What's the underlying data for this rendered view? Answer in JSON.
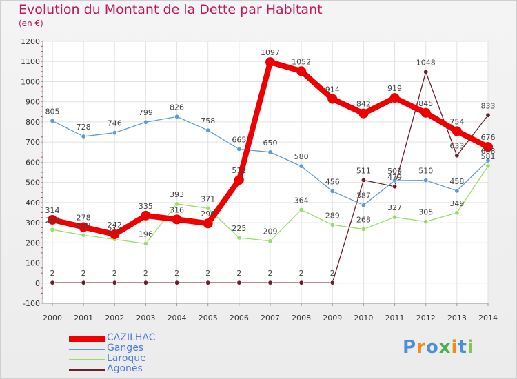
{
  "title": "Evolution du Montant de la Dette par Habitant",
  "subtitle": "(en €)",
  "logo": {
    "text": "Proxiti",
    "colors": [
      "#4a90d9",
      "#f08a1c",
      "#4a90d9",
      "#4caf50",
      "#f08a1c",
      "#4a90d9",
      "#8bc34a"
    ]
  },
  "chart_data": {
    "type": "line",
    "categories": [
      "2000",
      "2001",
      "2002",
      "2003",
      "2004",
      "2005",
      "2006",
      "2007",
      "2008",
      "2009",
      "2010",
      "2011",
      "2012",
      "2013",
      "2014"
    ],
    "ylim": [
      -100,
      1200
    ],
    "yticks": [
      -100,
      0,
      100,
      200,
      300,
      400,
      500,
      600,
      700,
      800,
      900,
      1000,
      1100,
      1200
    ],
    "grid": true,
    "legend_position": "bottom-left",
    "series": [
      {
        "name": "CAZILHAC",
        "color": "#ee0000",
        "values": [
          314,
          278,
          242,
          335,
          316,
          296,
          512,
          1097,
          1052,
          914,
          842,
          919,
          845,
          754,
          676
        ]
      },
      {
        "name": "Ganges",
        "color": "#5f9bd3",
        "values": [
          805,
          728,
          746,
          799,
          826,
          758,
          665,
          650,
          580,
          456,
          387,
          509,
          510,
          458,
          608
        ]
      },
      {
        "name": "Laroque",
        "color": "#99dd66",
        "values": [
          265,
          238,
          217,
          196,
          393,
          371,
          225,
          209,
          364,
          289,
          268,
          327,
          305,
          349,
          581
        ]
      },
      {
        "name": "Agonès",
        "color": "#6b1f2a",
        "values": [
          2,
          2,
          2,
          2,
          2,
          2,
          2,
          2,
          2,
          2,
          511,
          479,
          1048,
          633,
          833
        ]
      }
    ]
  }
}
